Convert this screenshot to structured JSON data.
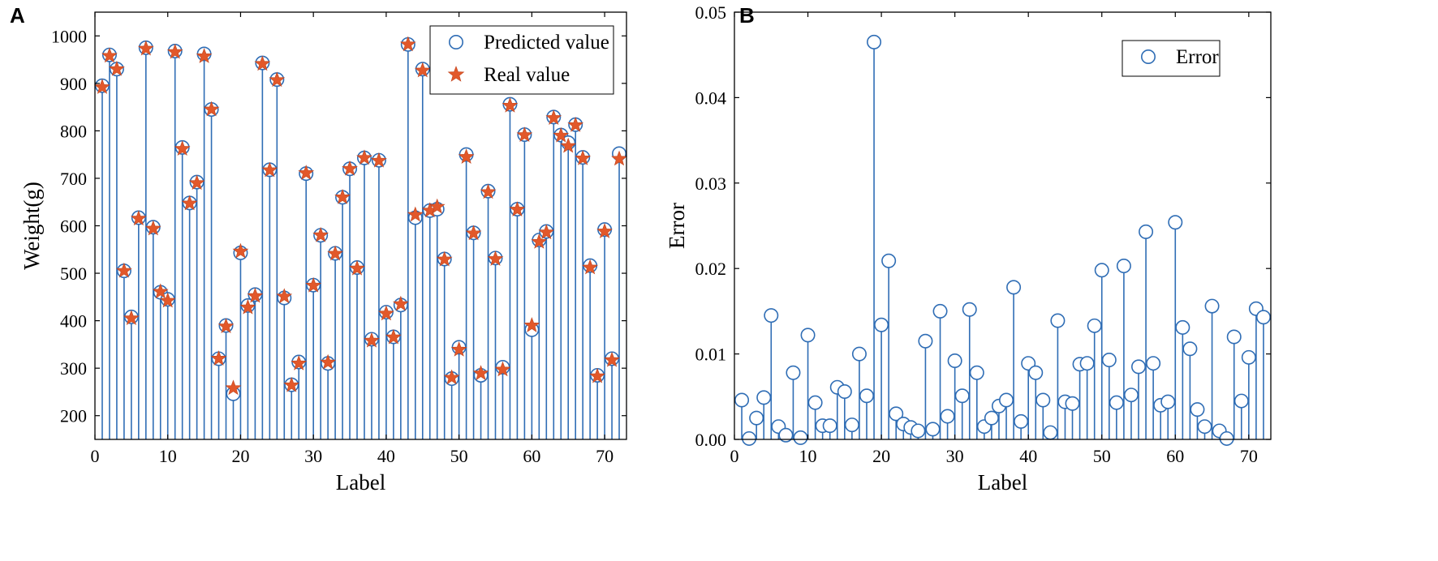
{
  "colors": {
    "stem": "#2f6db5",
    "marker_edge": "#2f6db5",
    "star": "#e2582a",
    "star_edge": "#c0451f"
  },
  "chart_data": [
    {
      "panel": "A",
      "type": "stem",
      "xlabel": "Label",
      "ylabel": "Weight(g)",
      "xlim": [
        0,
        73
      ],
      "ylim": [
        150,
        1050
      ],
      "xticks": [
        0,
        10,
        20,
        30,
        40,
        50,
        60,
        70
      ],
      "yticks": [
        200,
        300,
        400,
        500,
        600,
        700,
        800,
        900,
        1000
      ],
      "legend": {
        "position": "top-right",
        "entries": [
          "Predicted value",
          "Real value"
        ]
      },
      "x": [
        1,
        2,
        3,
        4,
        5,
        6,
        7,
        8,
        9,
        10,
        11,
        12,
        13,
        14,
        15,
        16,
        17,
        18,
        19,
        20,
        21,
        22,
        23,
        24,
        25,
        26,
        27,
        28,
        29,
        30,
        31,
        32,
        33,
        34,
        35,
        36,
        37,
        38,
        39,
        40,
        41,
        42,
        43,
        44,
        45,
        46,
        47,
        48,
        49,
        50,
        51,
        52,
        53,
        54,
        55,
        56,
        57,
        58,
        59,
        60,
        61,
        62,
        63,
        64,
        65,
        66,
        67,
        68,
        69,
        70,
        71,
        72
      ],
      "series": [
        {
          "name": "Predicted value",
          "marker": "circle",
          "values": [
            895,
            960,
            930,
            505,
            408,
            617,
            975,
            597,
            460,
            445,
            968,
            765,
            648,
            692,
            962,
            845,
            320,
            390,
            246,
            543,
            432,
            455,
            943,
            718,
            908,
            448,
            265,
            313,
            710,
            475,
            580,
            310,
            542,
            660,
            720,
            512,
            743,
            361,
            738,
            418,
            366,
            433,
            982,
            617,
            930,
            632,
            635,
            530,
            278,
            344,
            750,
            585,
            285,
            673,
            532,
            302,
            856,
            635,
            792,
            381,
            570,
            588,
            829,
            791,
            775,
            813,
            744,
            516,
            285,
            592,
            320,
            752
          ]
        },
        {
          "name": "Real value",
          "marker": "star",
          "values": [
            892,
            958,
            930,
            505,
            405,
            615,
            973,
            594,
            461,
            442,
            966,
            762,
            647,
            690,
            957,
            845,
            320,
            388,
            258,
            546,
            428,
            452,
            941,
            717,
            907,
            451,
            264,
            310,
            711,
            474,
            580,
            312,
            541,
            660,
            720,
            510,
            743,
            358,
            737,
            415,
            365,
            435,
            982,
            623,
            927,
            632,
            640,
            529,
            280,
            339,
            745,
            584,
            289,
            671,
            530,
            297,
            853,
            634,
            791,
            390,
            566,
            586,
            827,
            790,
            768,
            812,
            742,
            512,
            283,
            588,
            317,
            741
          ]
        }
      ]
    },
    {
      "panel": "B",
      "type": "stem",
      "xlabel": "Label",
      "ylabel": "Error",
      "xlim": [
        0,
        73
      ],
      "ylim": [
        0,
        0.05
      ],
      "xticks": [
        0,
        10,
        20,
        30,
        40,
        50,
        60,
        70
      ],
      "yticks": [
        0.0,
        0.01,
        0.02,
        0.03,
        0.04,
        0.05
      ],
      "ytick_labels": [
        "0.00",
        "0.01",
        "0.02",
        "0.03",
        "0.04",
        "0.05"
      ],
      "legend": {
        "position": "top-right",
        "entries": [
          "Error"
        ]
      },
      "x": [
        1,
        2,
        3,
        4,
        5,
        6,
        7,
        8,
        9,
        10,
        11,
        12,
        13,
        14,
        15,
        16,
        17,
        18,
        19,
        20,
        21,
        22,
        23,
        24,
        25,
        26,
        27,
        28,
        29,
        30,
        31,
        32,
        33,
        34,
        35,
        36,
        37,
        38,
        39,
        40,
        41,
        42,
        43,
        44,
        45,
        46,
        47,
        48,
        49,
        50,
        51,
        52,
        53,
        54,
        55,
        56,
        57,
        58,
        59,
        60,
        61,
        62,
        63,
        64,
        65,
        66,
        67,
        68,
        69,
        70,
        71,
        72
      ],
      "series": [
        {
          "name": "Error",
          "marker": "circle",
          "values": [
            0.0046,
            0.0001,
            0.0025,
            0.0049,
            0.0145,
            0.0015,
            0.0005,
            0.0078,
            0.0002,
            0.0122,
            0.0043,
            0.0016,
            0.0016,
            0.0061,
            0.0056,
            0.0017,
            0.01,
            0.0051,
            0.0465,
            0.0134,
            0.0209,
            0.003,
            0.0018,
            0.0014,
            0.001,
            0.0115,
            0.0012,
            0.015,
            0.0027,
            0.0092,
            0.0051,
            0.0152,
            0.0078,
            0.0015,
            0.0025,
            0.0039,
            0.0046,
            0.0178,
            0.0021,
            0.0089,
            0.0078,
            0.0046,
            0.0008,
            0.0139,
            0.0044,
            0.0042,
            0.0088,
            0.0089,
            0.0133,
            0.0198,
            0.0093,
            0.0043,
            0.0203,
            0.0052,
            0.0085,
            0.0243,
            0.0089,
            0.004,
            0.0044,
            0.0254,
            0.0131,
            0.0106,
            0.0035,
            0.0015,
            0.0156,
            0.001,
            0.0001,
            0.012,
            0.0045,
            0.0096,
            0.0153,
            0.0143
          ]
        }
      ]
    }
  ]
}
